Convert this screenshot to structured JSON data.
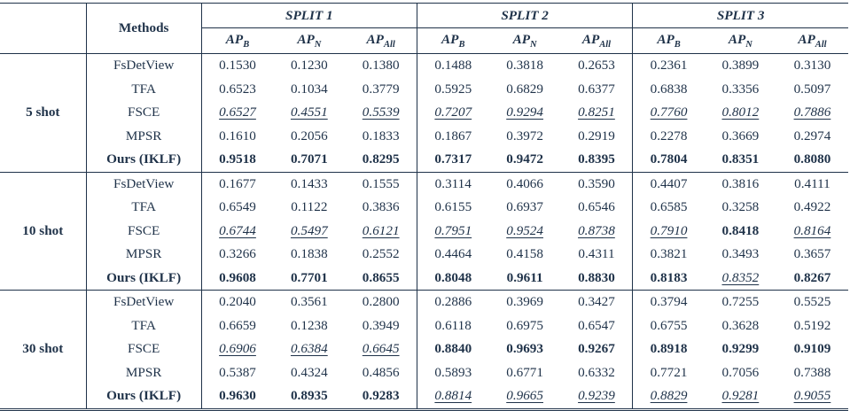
{
  "header": {
    "methods_label": "Methods",
    "splits": [
      "SPLIT 1",
      "SPLIT 2",
      "SPLIT 3"
    ],
    "metrics": [
      {
        "base": "AP",
        "sub": "B"
      },
      {
        "base": "AP",
        "sub": "N"
      },
      {
        "base": "AP",
        "sub": "All"
      }
    ]
  },
  "groups": [
    {
      "shot": "5 shot",
      "rows": [
        {
          "method": "FsDetView",
          "style": "normal",
          "values": [
            {
              "v": "0.1530",
              "s": ""
            },
            {
              "v": "0.1230",
              "s": ""
            },
            {
              "v": "0.1380",
              "s": ""
            },
            {
              "v": "0.1488",
              "s": ""
            },
            {
              "v": "0.3818",
              "s": ""
            },
            {
              "v": "0.2653",
              "s": ""
            },
            {
              "v": "0.2361",
              "s": ""
            },
            {
              "v": "0.3899",
              "s": ""
            },
            {
              "v": "0.3130",
              "s": ""
            }
          ]
        },
        {
          "method": "TFA",
          "style": "normal",
          "values": [
            {
              "v": "0.6523",
              "s": ""
            },
            {
              "v": "0.1034",
              "s": ""
            },
            {
              "v": "0.3779",
              "s": ""
            },
            {
              "v": "0.5925",
              "s": ""
            },
            {
              "v": "0.6829",
              "s": ""
            },
            {
              "v": "0.6377",
              "s": ""
            },
            {
              "v": "0.6838",
              "s": ""
            },
            {
              "v": "0.3356",
              "s": ""
            },
            {
              "v": "0.5097",
              "s": ""
            }
          ]
        },
        {
          "method": "FSCE",
          "style": "normal",
          "values": [
            {
              "v": "0.6527",
              "s": "u"
            },
            {
              "v": "0.4551",
              "s": "u"
            },
            {
              "v": "0.5539",
              "s": "u"
            },
            {
              "v": "0.7207",
              "s": "u"
            },
            {
              "v": "0.9294",
              "s": "u"
            },
            {
              "v": "0.8251",
              "s": "u"
            },
            {
              "v": "0.7760",
              "s": "u"
            },
            {
              "v": "0.8012",
              "s": "u"
            },
            {
              "v": "0.7886",
              "s": "u"
            }
          ]
        },
        {
          "method": "MPSR",
          "style": "normal",
          "values": [
            {
              "v": "0.1610",
              "s": ""
            },
            {
              "v": "0.2056",
              "s": ""
            },
            {
              "v": "0.1833",
              "s": ""
            },
            {
              "v": "0.1867",
              "s": ""
            },
            {
              "v": "0.3972",
              "s": ""
            },
            {
              "v": "0.2919",
              "s": ""
            },
            {
              "v": "0.2278",
              "s": ""
            },
            {
              "v": "0.3669",
              "s": ""
            },
            {
              "v": "0.2974",
              "s": ""
            }
          ]
        },
        {
          "method": "Ours (IKLF)",
          "style": "bold",
          "values": [
            {
              "v": "0.9518",
              "s": "b"
            },
            {
              "v": "0.7071",
              "s": "b"
            },
            {
              "v": "0.8295",
              "s": "b"
            },
            {
              "v": "0.7317",
              "s": "b"
            },
            {
              "v": "0.9472",
              "s": "b"
            },
            {
              "v": "0.8395",
              "s": "b"
            },
            {
              "v": "0.7804",
              "s": "b"
            },
            {
              "v": "0.8351",
              "s": "b"
            },
            {
              "v": "0.8080",
              "s": "b"
            }
          ]
        }
      ]
    },
    {
      "shot": "10 shot",
      "rows": [
        {
          "method": "FsDetView",
          "style": "normal",
          "values": [
            {
              "v": "0.1677",
              "s": ""
            },
            {
              "v": "0.1433",
              "s": ""
            },
            {
              "v": "0.1555",
              "s": ""
            },
            {
              "v": "0.3114",
              "s": ""
            },
            {
              "v": "0.4066",
              "s": ""
            },
            {
              "v": "0.3590",
              "s": ""
            },
            {
              "v": "0.4407",
              "s": ""
            },
            {
              "v": "0.3816",
              "s": ""
            },
            {
              "v": "0.4111",
              "s": ""
            }
          ]
        },
        {
          "method": "TFA",
          "style": "normal",
          "values": [
            {
              "v": "0.6549",
              "s": ""
            },
            {
              "v": "0.1122",
              "s": ""
            },
            {
              "v": "0.3836",
              "s": ""
            },
            {
              "v": "0.6155",
              "s": ""
            },
            {
              "v": "0.6937",
              "s": ""
            },
            {
              "v": "0.6546",
              "s": ""
            },
            {
              "v": "0.6585",
              "s": ""
            },
            {
              "v": "0.3258",
              "s": ""
            },
            {
              "v": "0.4922",
              "s": ""
            }
          ]
        },
        {
          "method": "FSCE",
          "style": "normal",
          "values": [
            {
              "v": "0.6744",
              "s": "u"
            },
            {
              "v": "0.5497",
              "s": "u"
            },
            {
              "v": "0.6121",
              "s": "u"
            },
            {
              "v": "0.7951",
              "s": "u"
            },
            {
              "v": "0.9524",
              "s": "u"
            },
            {
              "v": "0.8738",
              "s": "u"
            },
            {
              "v": "0.7910",
              "s": "u"
            },
            {
              "v": "0.8418",
              "s": "b"
            },
            {
              "v": "0.8164",
              "s": "u"
            }
          ]
        },
        {
          "method": "MPSR",
          "style": "normal",
          "values": [
            {
              "v": "0.3266",
              "s": ""
            },
            {
              "v": "0.1838",
              "s": ""
            },
            {
              "v": "0.2552",
              "s": ""
            },
            {
              "v": "0.4464",
              "s": ""
            },
            {
              "v": "0.4158",
              "s": ""
            },
            {
              "v": "0.4311",
              "s": ""
            },
            {
              "v": "0.3821",
              "s": ""
            },
            {
              "v": "0.3493",
              "s": ""
            },
            {
              "v": "0.3657",
              "s": ""
            }
          ]
        },
        {
          "method": "Ours (IKLF)",
          "style": "bold",
          "values": [
            {
              "v": "0.9608",
              "s": "b"
            },
            {
              "v": "0.7701",
              "s": "b"
            },
            {
              "v": "0.8655",
              "s": "b"
            },
            {
              "v": "0.8048",
              "s": "b"
            },
            {
              "v": "0.9611",
              "s": "b"
            },
            {
              "v": "0.8830",
              "s": "b"
            },
            {
              "v": "0.8183",
              "s": "b"
            },
            {
              "v": "0.8352",
              "s": "u"
            },
            {
              "v": "0.8267",
              "s": "b"
            }
          ]
        }
      ]
    },
    {
      "shot": "30 shot",
      "rows": [
        {
          "method": "FsDetView",
          "style": "normal",
          "values": [
            {
              "v": "0.2040",
              "s": ""
            },
            {
              "v": "0.3561",
              "s": ""
            },
            {
              "v": "0.2800",
              "s": ""
            },
            {
              "v": "0.2886",
              "s": ""
            },
            {
              "v": "0.3969",
              "s": ""
            },
            {
              "v": "0.3427",
              "s": ""
            },
            {
              "v": "0.3794",
              "s": ""
            },
            {
              "v": "0.7255",
              "s": ""
            },
            {
              "v": "0.5525",
              "s": ""
            }
          ]
        },
        {
          "method": "TFA",
          "style": "normal",
          "values": [
            {
              "v": "0.6659",
              "s": ""
            },
            {
              "v": "0.1238",
              "s": ""
            },
            {
              "v": "0.3949",
              "s": ""
            },
            {
              "v": "0.6118",
              "s": ""
            },
            {
              "v": "0.6975",
              "s": ""
            },
            {
              "v": "0.6547",
              "s": ""
            },
            {
              "v": "0.6755",
              "s": ""
            },
            {
              "v": "0.3628",
              "s": ""
            },
            {
              "v": "0.5192",
              "s": ""
            }
          ]
        },
        {
          "method": "FSCE",
          "style": "normal",
          "values": [
            {
              "v": "0.6906",
              "s": "u"
            },
            {
              "v": "0.6384",
              "s": "u"
            },
            {
              "v": "0.6645",
              "s": "u"
            },
            {
              "v": "0.8840",
              "s": "b"
            },
            {
              "v": "0.9693",
              "s": "b"
            },
            {
              "v": "0.9267",
              "s": "b"
            },
            {
              "v": "0.8918",
              "s": "b"
            },
            {
              "v": "0.9299",
              "s": "b"
            },
            {
              "v": "0.9109",
              "s": "b"
            }
          ]
        },
        {
          "method": "MPSR",
          "style": "normal",
          "values": [
            {
              "v": "0.5387",
              "s": ""
            },
            {
              "v": "0.4324",
              "s": ""
            },
            {
              "v": "0.4856",
              "s": ""
            },
            {
              "v": "0.5893",
              "s": ""
            },
            {
              "v": "0.6771",
              "s": ""
            },
            {
              "v": "0.6332",
              "s": ""
            },
            {
              "v": "0.7721",
              "s": ""
            },
            {
              "v": "0.7056",
              "s": ""
            },
            {
              "v": "0.7388",
              "s": ""
            }
          ]
        },
        {
          "method": "Ours (IKLF)",
          "style": "bold",
          "values": [
            {
              "v": "0.9630",
              "s": "b"
            },
            {
              "v": "0.8935",
              "s": "b"
            },
            {
              "v": "0.9283",
              "s": "b"
            },
            {
              "v": "0.8814",
              "s": "u"
            },
            {
              "v": "0.9665",
              "s": "u"
            },
            {
              "v": "0.9239",
              "s": "u"
            },
            {
              "v": "0.8829",
              "s": "u"
            },
            {
              "v": "0.9281",
              "s": "u"
            },
            {
              "v": "0.9055",
              "s": "u"
            }
          ]
        }
      ]
    }
  ]
}
